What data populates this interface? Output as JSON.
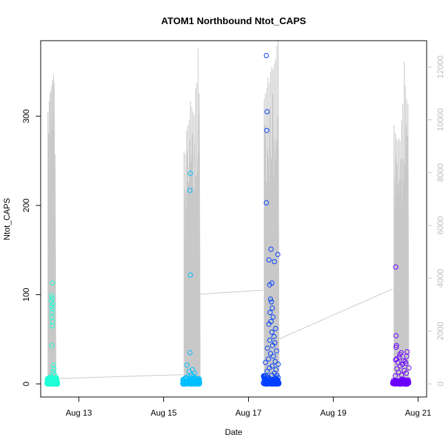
{
  "chart_data": {
    "type": "scatter",
    "title": "ATOM1 Northbound Ntot_CAPS",
    "xlabel": "Date",
    "ylabel": "Ntot_CAPS",
    "x_ticks": [
      {
        "label": "Aug 13",
        "day": 13
      },
      {
        "label": "Aug 15",
        "day": 15
      },
      {
        "label": "Aug 17",
        "day": 17
      },
      {
        "label": "Aug 19",
        "day": 19
      },
      {
        "label": "Aug 21",
        "day": 21
      }
    ],
    "xlim_days": [
      12.1,
      21.2
    ],
    "ylim": [
      0,
      370
    ],
    "y_ticks": [
      0,
      100,
      200,
      300
    ],
    "y2lim": [
      0,
      12500
    ],
    "y2_ticks": [
      0,
      2000,
      4000,
      6000,
      8000,
      10000,
      12000
    ],
    "grid": false,
    "colors": {
      "cluster1": "#1fffd5",
      "cluster2": "#00bfff",
      "cluster3": "#0040ff",
      "cluster4": "#6a00ff",
      "line": "#c8c8c8"
    },
    "series": [
      {
        "color_key": "cluster1",
        "day_range": [
          12.25,
          12.5
        ],
        "baseline_values": [
          0,
          1,
          2,
          3,
          4,
          5,
          6,
          8
        ],
        "points": [
          {
            "x": 12.38,
            "y": 113
          },
          {
            "x": 12.36,
            "y": 99
          },
          {
            "x": 12.37,
            "y": 96
          },
          {
            "x": 12.35,
            "y": 93
          },
          {
            "x": 12.39,
            "y": 90
          },
          {
            "x": 12.36,
            "y": 87
          },
          {
            "x": 12.38,
            "y": 84
          },
          {
            "x": 12.37,
            "y": 80
          },
          {
            "x": 12.36,
            "y": 75
          },
          {
            "x": 12.38,
            "y": 70
          },
          {
            "x": 12.37,
            "y": 65
          },
          {
            "x": 12.36,
            "y": 43
          },
          {
            "x": 12.4,
            "y": 21
          },
          {
            "x": 12.41,
            "y": 17
          },
          {
            "x": 12.39,
            "y": 14
          },
          {
            "x": 12.42,
            "y": 11
          },
          {
            "x": 12.4,
            "y": 9
          }
        ]
      },
      {
        "color_key": "cluster2",
        "day_range": [
          15.45,
          15.85
        ],
        "baseline_values": [
          0,
          1,
          2,
          3,
          4,
          5,
          6,
          7
        ],
        "points": [
          {
            "x": 15.63,
            "y": 236
          },
          {
            "x": 15.62,
            "y": 217
          },
          {
            "x": 15.63,
            "y": 122
          },
          {
            "x": 15.62,
            "y": 35
          },
          {
            "x": 15.55,
            "y": 21
          },
          {
            "x": 15.68,
            "y": 16
          },
          {
            "x": 15.6,
            "y": 14
          },
          {
            "x": 15.73,
            "y": 12
          },
          {
            "x": 15.65,
            "y": 10
          },
          {
            "x": 15.7,
            "y": 9
          },
          {
            "x": 15.58,
            "y": 8
          }
        ]
      },
      {
        "color_key": "cluster3",
        "day_range": [
          17.35,
          17.72
        ],
        "baseline_values": [
          0,
          1,
          2,
          3,
          4,
          5,
          6,
          8,
          10
        ],
        "points": [
          {
            "x": 17.42,
            "y": 368
          },
          {
            "x": 17.44,
            "y": 305
          },
          {
            "x": 17.43,
            "y": 284
          },
          {
            "x": 17.42,
            "y": 203
          },
          {
            "x": 17.53,
            "y": 151
          },
          {
            "x": 17.69,
            "y": 145
          },
          {
            "x": 17.48,
            "y": 139
          },
          {
            "x": 17.61,
            "y": 137
          },
          {
            "x": 17.55,
            "y": 113
          },
          {
            "x": 17.5,
            "y": 111
          },
          {
            "x": 17.52,
            "y": 95
          },
          {
            "x": 17.54,
            "y": 92
          },
          {
            "x": 17.56,
            "y": 85
          },
          {
            "x": 17.51,
            "y": 80
          },
          {
            "x": 17.58,
            "y": 75
          },
          {
            "x": 17.53,
            "y": 70
          },
          {
            "x": 17.48,
            "y": 67
          },
          {
            "x": 17.64,
            "y": 62
          },
          {
            "x": 17.55,
            "y": 58
          },
          {
            "x": 17.6,
            "y": 53
          },
          {
            "x": 17.5,
            "y": 49
          },
          {
            "x": 17.62,
            "y": 46
          },
          {
            "x": 17.57,
            "y": 43
          },
          {
            "x": 17.45,
            "y": 40
          },
          {
            "x": 17.66,
            "y": 37
          },
          {
            "x": 17.52,
            "y": 34
          },
          {
            "x": 17.59,
            "y": 31
          },
          {
            "x": 17.47,
            "y": 28
          },
          {
            "x": 17.63,
            "y": 25
          },
          {
            "x": 17.4,
            "y": 24
          },
          {
            "x": 17.7,
            "y": 22
          },
          {
            "x": 17.56,
            "y": 20
          },
          {
            "x": 17.49,
            "y": 18
          },
          {
            "x": 17.65,
            "y": 16
          },
          {
            "x": 17.44,
            "y": 14
          },
          {
            "x": 17.61,
            "y": 12
          }
        ]
      },
      {
        "color_key": "cluster4",
        "day_range": [
          20.4,
          20.78
        ],
        "baseline_values": [
          0,
          1,
          2,
          3,
          4,
          5
        ],
        "points": [
          {
            "x": 20.47,
            "y": 131
          },
          {
            "x": 20.48,
            "y": 54
          },
          {
            "x": 20.49,
            "y": 43
          },
          {
            "x": 20.48,
            "y": 41
          },
          {
            "x": 20.6,
            "y": 35
          },
          {
            "x": 20.74,
            "y": 36
          },
          {
            "x": 20.57,
            "y": 33
          },
          {
            "x": 20.73,
            "y": 31
          },
          {
            "x": 20.55,
            "y": 30
          },
          {
            "x": 20.49,
            "y": 28
          },
          {
            "x": 20.47,
            "y": 27
          },
          {
            "x": 20.65,
            "y": 26
          },
          {
            "x": 20.69,
            "y": 25
          },
          {
            "x": 20.52,
            "y": 24
          },
          {
            "x": 20.71,
            "y": 23
          },
          {
            "x": 20.63,
            "y": 22
          },
          {
            "x": 20.58,
            "y": 20
          },
          {
            "x": 20.78,
            "y": 18
          },
          {
            "x": 20.5,
            "y": 17
          },
          {
            "x": 20.67,
            "y": 15
          },
          {
            "x": 20.54,
            "y": 13
          },
          {
            "x": 20.72,
            "y": 12
          },
          {
            "x": 20.61,
            "y": 10
          },
          {
            "x": 20.46,
            "y": 9
          }
        ]
      }
    ],
    "line_series": {
      "axis": "right",
      "segments": [
        {
          "day_range": [
            12.25,
            12.5
          ],
          "peaks": [
            {
              "x": 12.27,
              "y": 10300
            },
            {
              "x": 12.3,
              "y": 10700
            },
            {
              "x": 12.32,
              "y": 11000
            },
            {
              "x": 12.34,
              "y": 11100
            },
            {
              "x": 12.36,
              "y": 11300
            },
            {
              "x": 12.38,
              "y": 11500
            },
            {
              "x": 12.4,
              "y": 11700
            },
            {
              "x": 12.42,
              "y": 11400
            },
            {
              "x": 12.44,
              "y": 8700
            }
          ]
        },
        {
          "day_range": [
            15.45,
            15.85
          ],
          "peaks": [
            {
              "x": 15.48,
              "y": 8800
            },
            {
              "x": 15.51,
              "y": 8700
            },
            {
              "x": 15.54,
              "y": 9600
            },
            {
              "x": 15.57,
              "y": 9800
            },
            {
              "x": 15.6,
              "y": 10000
            },
            {
              "x": 15.63,
              "y": 10700
            },
            {
              "x": 15.66,
              "y": 10500
            },
            {
              "x": 15.69,
              "y": 10300
            },
            {
              "x": 15.72,
              "y": 10200
            },
            {
              "x": 15.75,
              "y": 11200
            },
            {
              "x": 15.78,
              "y": 11400
            },
            {
              "x": 15.81,
              "y": 12700
            },
            {
              "x": 15.84,
              "y": 11000
            }
          ]
        },
        {
          "day_range": [
            17.35,
            17.72
          ],
          "peaks": [
            {
              "x": 17.37,
              "y": 10800
            },
            {
              "x": 17.4,
              "y": 11000
            },
            {
              "x": 17.43,
              "y": 11200
            },
            {
              "x": 17.46,
              "y": 11600
            },
            {
              "x": 17.49,
              "y": 11400
            },
            {
              "x": 17.52,
              "y": 11800
            },
            {
              "x": 17.55,
              "y": 12000
            },
            {
              "x": 17.58,
              "y": 11900
            },
            {
              "x": 17.61,
              "y": 12100
            },
            {
              "x": 17.64,
              "y": 12300
            },
            {
              "x": 17.67,
              "y": 12800
            },
            {
              "x": 17.7,
              "y": 13000
            }
          ]
        },
        {
          "day_range": [
            20.4,
            20.78
          ],
          "peaks": [
            {
              "x": 20.43,
              "y": 9800
            },
            {
              "x": 20.46,
              "y": 9500
            },
            {
              "x": 20.49,
              "y": 9300
            },
            {
              "x": 20.52,
              "y": 9200
            },
            {
              "x": 20.55,
              "y": 9300
            },
            {
              "x": 20.58,
              "y": 9200
            },
            {
              "x": 20.61,
              "y": 10000
            },
            {
              "x": 20.64,
              "y": 10600
            },
            {
              "x": 20.67,
              "y": 12200
            },
            {
              "x": 20.7,
              "y": 11300
            },
            {
              "x": 20.73,
              "y": 10800
            },
            {
              "x": 20.76,
              "y": 10600
            }
          ]
        }
      ],
      "connectors": [
        {
          "from": {
            "x": 12.48,
            "y": 200
          },
          "to": {
            "x": 15.45,
            "y": 350
          }
        },
        {
          "from": {
            "x": 15.85,
            "y": 3400
          },
          "to": {
            "x": 17.35,
            "y": 3550
          }
        },
        {
          "from": {
            "x": 17.72,
            "y": 1700
          },
          "to": {
            "x": 20.4,
            "y": 3600
          }
        }
      ]
    }
  }
}
